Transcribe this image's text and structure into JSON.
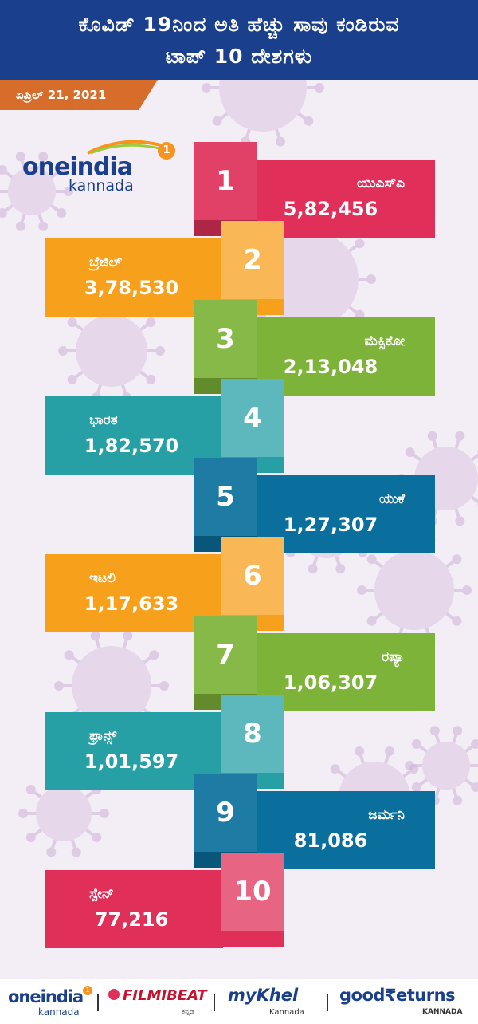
{
  "header": {
    "title_line1": "ಕೊವಿಡ್ 19ನಿಂದ ಅತಿ ಹೆಚ್ಚು ಸಾವು ಕಂಡಿರುವ",
    "title_line2": "ಟಾಪ್ 10 ದೇಶಗಳು",
    "date": "ಏಪ್ರಿಲ್ 21, 2021"
  },
  "logo": {
    "part1": "oneindia",
    "part2": "kannada",
    "badge": "1"
  },
  "colors": {
    "header_bg": "#1a3f8c",
    "date_bg": "#d66d2a",
    "rank_colors": [
      "#e0305a",
      "#f7a01c",
      "#7db338",
      "#26a0a5",
      "#0a6f9c",
      "#f7a01c",
      "#7db338",
      "#26a0a5",
      "#0a6f9c",
      "#e0305a"
    ]
  },
  "chart_data": {
    "type": "table",
    "title": "ಕೊವಿಡ್ 19ನಿಂದ ಅತಿ ಹೆಚ್ಚು ಸಾವು ಕಂಡಿರುವ ಟಾಪ್ 10 ದೇಶಗಳು",
    "subtitle": "ಏಪ್ರಿಲ್ 21, 2021",
    "ranks": [
      "1",
      "2",
      "3",
      "4",
      "5",
      "6",
      "7",
      "8",
      "9",
      "10"
    ],
    "countries": [
      "ಯುಎಸ್‌ಎ",
      "ಬ್ರೆಜಿಲ್",
      "ಮೆಕ್ಸಿಕೋ",
      "ಭಾರತ",
      "ಯುಕೆ",
      "ಇಟಲಿ",
      "ರಷ್ಯಾ",
      "ಫ್ರಾನ್ಸ್",
      "ಜರ್ಮನಿ",
      "ಸ್ಪೇನ್"
    ],
    "values_text": [
      "5,82,456",
      "3,78,530",
      "2,13,048",
      "1,82,570",
      "1,27,307",
      "1,17,633",
      "1,06,307",
      "1,01,597",
      "81,086",
      "77,216"
    ],
    "values": [
      582456,
      378530,
      213048,
      182570,
      127307,
      117633,
      106307,
      101597,
      81086,
      77216
    ]
  },
  "footer": {
    "logos": [
      {
        "main": "oneindia",
        "sub": "kannada",
        "badge": "1"
      },
      {
        "main": "FILMIBEAT",
        "sub": "ಕನ್ನಡ"
      },
      {
        "main": "myKhel",
        "sub": "Kannada"
      },
      {
        "main": "good₹eturns",
        "sub": "KANNADA"
      }
    ]
  }
}
